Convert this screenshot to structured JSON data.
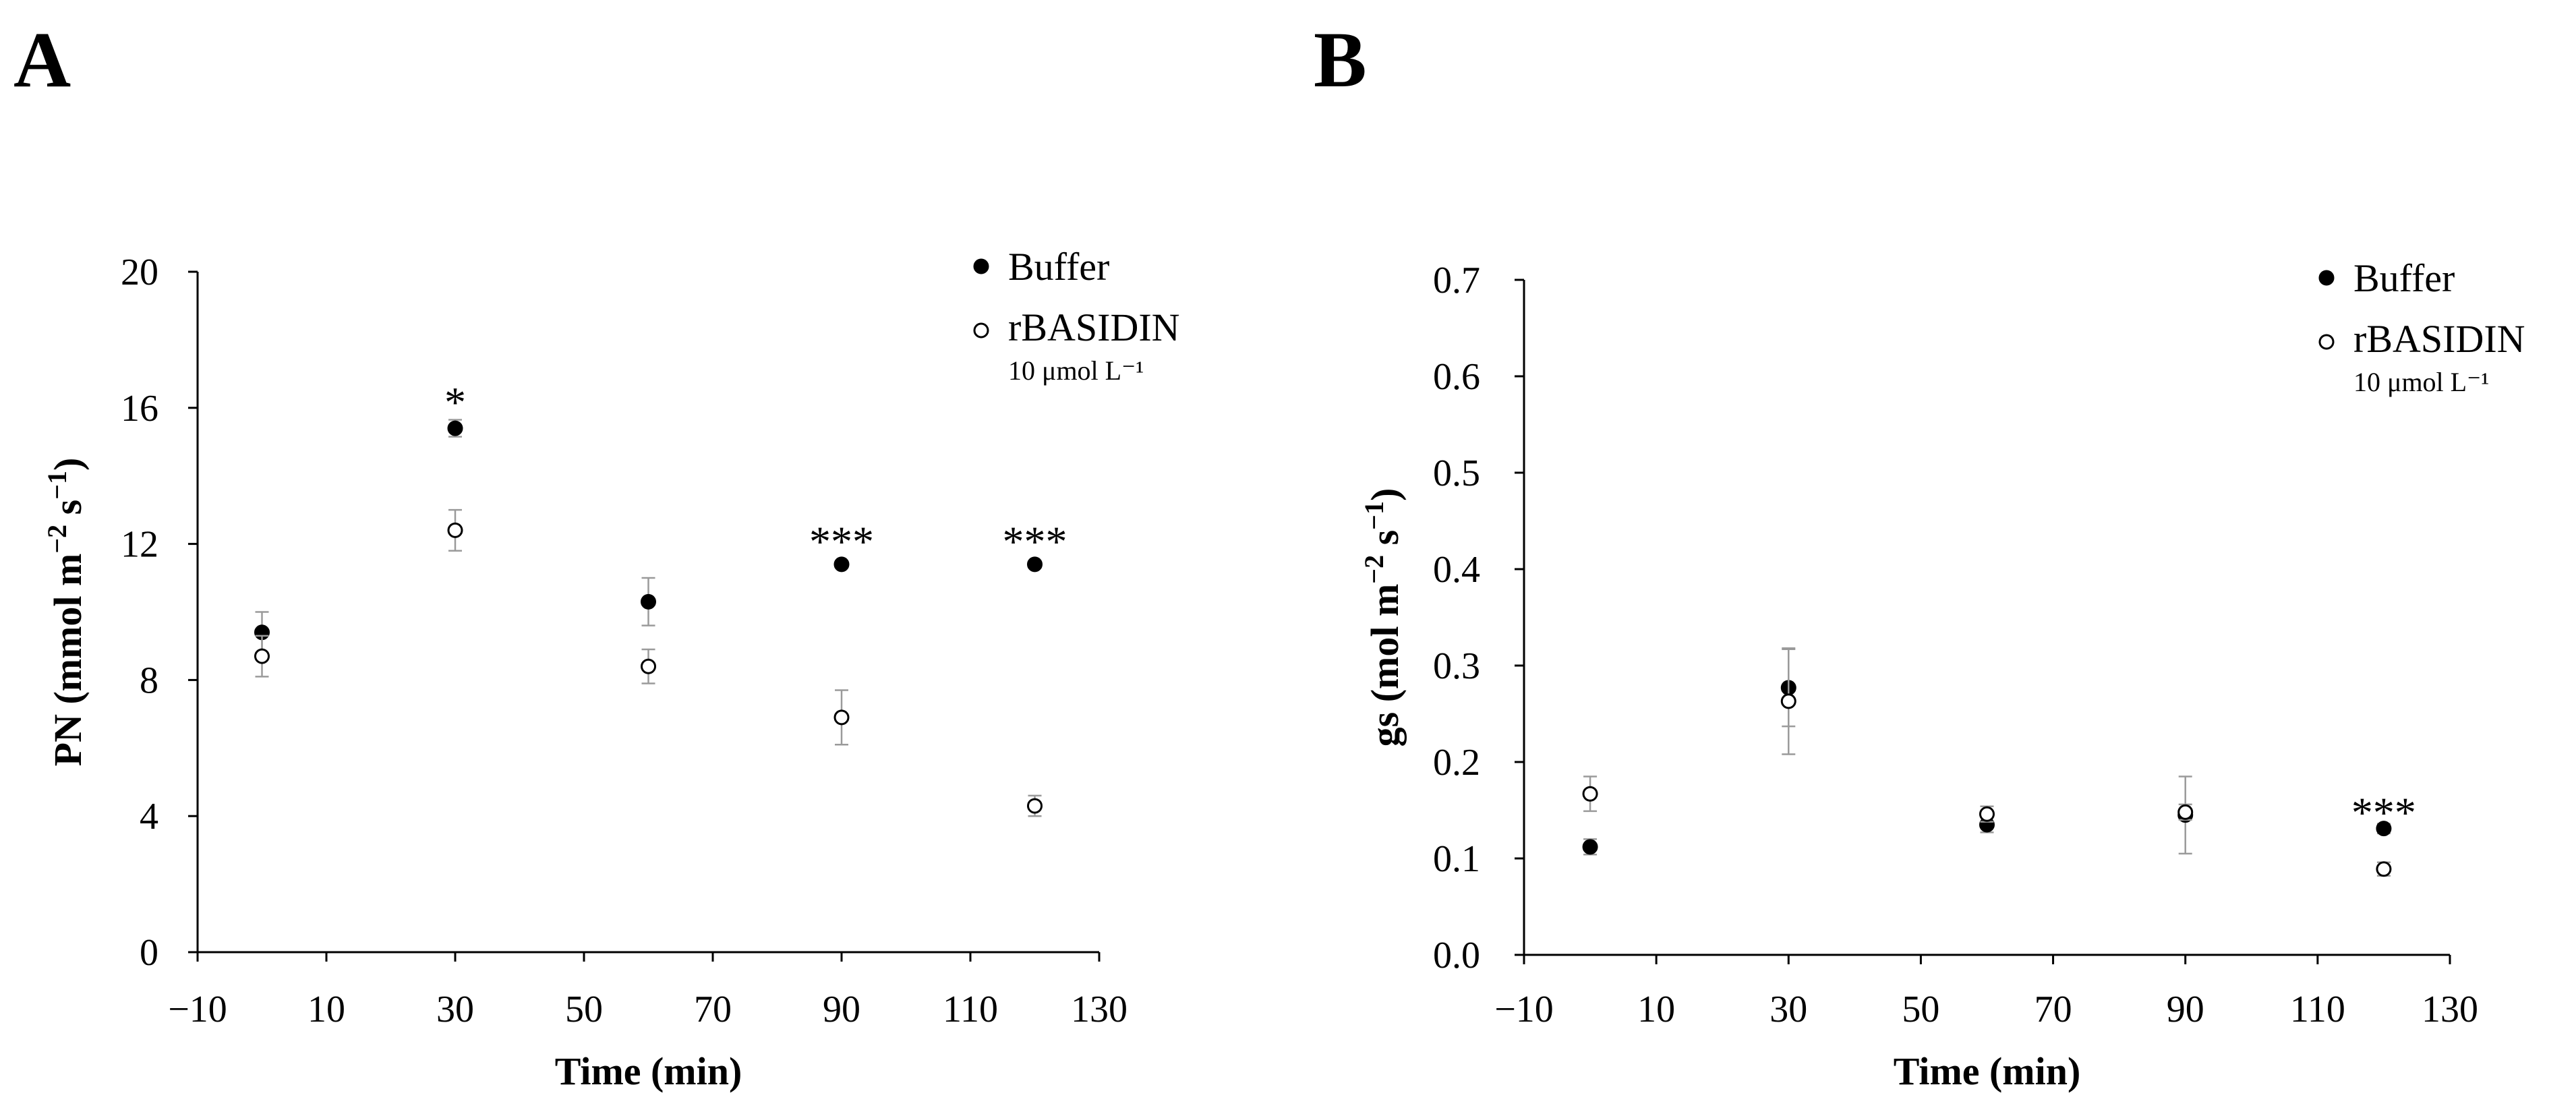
{
  "chart_data": [
    {
      "type": "scatter",
      "panel_label": "A",
      "xlabel": "Time (min)",
      "ylabel_main": "PN (mmol m",
      "ylabel_sup1": "−2",
      "ylabel_mid": " s",
      "ylabel_sup2": "−1",
      "ylabel_end": ")",
      "xlim": [
        -10,
        130
      ],
      "ylim": [
        0,
        20
      ],
      "xticks": [
        -10,
        10,
        30,
        50,
        70,
        90,
        110,
        130
      ],
      "xtick_labels": [
        "−10",
        "10",
        "30",
        "50",
        "70",
        "90",
        "110",
        "130"
      ],
      "yticks": [
        0,
        4,
        8,
        12,
        16,
        20
      ],
      "ytick_labels": [
        "0",
        "4",
        "8",
        "12",
        "16",
        "20"
      ],
      "grid": false,
      "legend_position": "top-right",
      "legend": {
        "item1": "Buffer",
        "item2": "rBASIDIN",
        "item2_sub": "10 μmol L⁻¹"
      },
      "series": [
        {
          "name": "Buffer",
          "marker": "filled",
          "x": [
            0,
            30,
            60,
            90,
            120
          ],
          "y": [
            9.4,
            15.4,
            10.3,
            11.4,
            11.4
          ],
          "err": [
            0.6,
            0.25,
            0.7,
            0.1,
            0.1
          ]
        },
        {
          "name": "rBASIDIN",
          "marker": "open",
          "x": [
            0,
            30,
            60,
            90,
            120
          ],
          "y": [
            8.7,
            12.4,
            8.4,
            6.9,
            4.3
          ],
          "err": [
            0.6,
            0.6,
            0.5,
            0.8,
            0.3
          ]
        }
      ],
      "annotations": [
        {
          "x": 30,
          "y": 16.1,
          "text": "*"
        },
        {
          "x": 90,
          "y": 12.0,
          "text": "***"
        },
        {
          "x": 120,
          "y": 12.0,
          "text": "***"
        }
      ]
    },
    {
      "type": "scatter",
      "panel_label": "B",
      "xlabel": "Time (min)",
      "ylabel_main": "gs (mol m",
      "ylabel_sup1": "−2",
      "ylabel_mid": " s",
      "ylabel_sup2": "−1",
      "ylabel_end": ")",
      "xlim": [
        -10,
        130
      ],
      "ylim": [
        0,
        0.7
      ],
      "xticks": [
        -10,
        10,
        30,
        50,
        70,
        90,
        110,
        130
      ],
      "xtick_labels": [
        "−10",
        "10",
        "30",
        "50",
        "70",
        "90",
        "110",
        "130"
      ],
      "yticks": [
        0,
        0.1,
        0.2,
        0.3,
        0.4,
        0.5,
        0.6,
        0.7
      ],
      "ytick_labels": [
        "0.0",
        "0.1",
        "0.2",
        "0.3",
        "0.4",
        "0.5",
        "0.6",
        "0.7"
      ],
      "grid": false,
      "legend_position": "top-right",
      "legend": {
        "item1": "Buffer",
        "item2": "rBASIDIN",
        "item2_sub": "10 μmol L⁻¹"
      },
      "series": [
        {
          "name": "Buffer",
          "marker": "filled",
          "x": [
            0,
            30,
            60,
            90,
            120
          ],
          "y": [
            0.112,
            0.277,
            0.135,
            0.145,
            0.131
          ],
          "err": [
            0.008,
            0.04,
            0.008,
            0.04,
            0.005
          ]
        },
        {
          "name": "rBASIDIN",
          "marker": "open",
          "x": [
            0,
            30,
            60,
            90,
            120
          ],
          "y": [
            0.167,
            0.263,
            0.146,
            0.148,
            0.089
          ],
          "err": [
            0.018,
            0.055,
            0.008,
            0.008,
            0.007
          ]
        }
      ],
      "annotations": [
        {
          "x": 120,
          "y": 0.145,
          "text": "***"
        }
      ]
    }
  ]
}
